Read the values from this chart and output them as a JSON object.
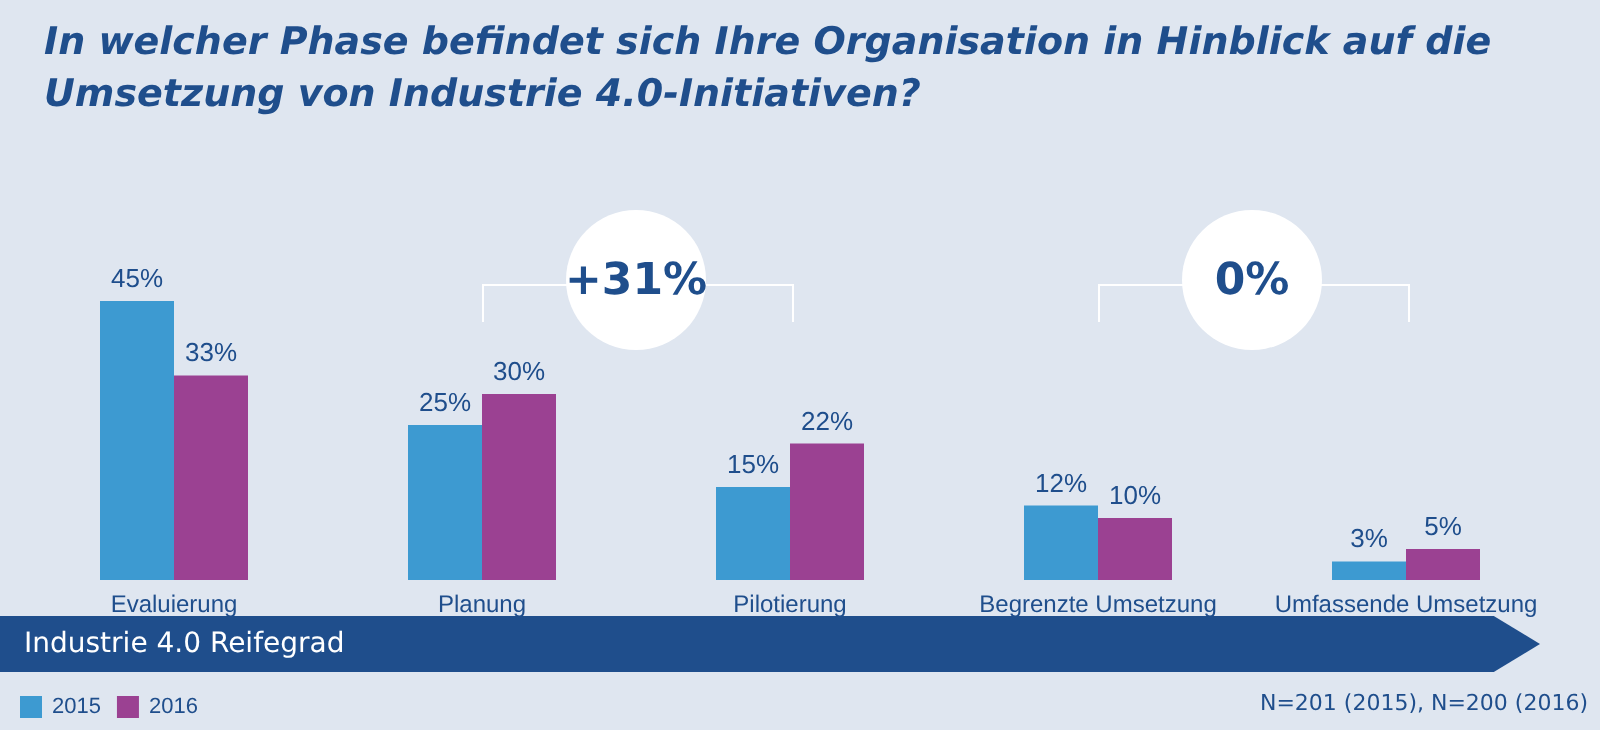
{
  "chart_data": {
    "type": "bar",
    "title": "In welcher Phase befindet sich Ihre Organisation in Hinblick auf die Umsetzung von Industrie 4.0-Initiativen?",
    "categories": [
      "Evaluierung",
      "Planung",
      "Pilotierung",
      "Begrenzte Umsetzung",
      "Umfassende Umsetzung"
    ],
    "series": [
      {
        "name": "2015",
        "color": "#3d9ad1",
        "values": [
          45,
          25,
          15,
          12,
          3
        ],
        "value_labels": [
          "45%",
          "25%",
          "15%",
          "12%",
          "3%"
        ]
      },
      {
        "name": "2016",
        "color": "#9b4192",
        "values": [
          33,
          30,
          22,
          10,
          5
        ],
        "value_labels": [
          "33%",
          "30%",
          "22%",
          "10%",
          "5%"
        ]
      }
    ],
    "annotations": [
      "+31%",
      "0%",
      "Industrie 4.0 Reifegrad",
      "N=201 (2015), N=200 (2016)"
    ],
    "legend": "bottom left",
    "grid": false
  }
}
